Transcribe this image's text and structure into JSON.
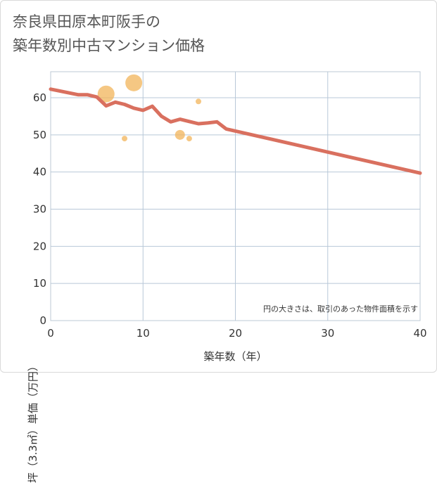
{
  "title_line1": "奈良県田原本町阪手の",
  "title_line2": "築年数別中古マンション価格",
  "chart_data": {
    "type": "scatter",
    "title": "奈良県田原本町阪手の築年数別中古マンション価格",
    "xlabel": "築年数（年）",
    "ylabel": "坪（3.3㎡）単価（万円）",
    "xlim": [
      0,
      40
    ],
    "ylim": [
      0,
      67
    ],
    "x_ticks": [
      "0",
      "10",
      "20",
      "30",
      "40"
    ],
    "y_ticks": [
      "0",
      "10",
      "20",
      "30",
      "40",
      "50",
      "60"
    ],
    "grid": true,
    "note": "円の大きさは、取引のあった物件面積を示す",
    "scatter_points": [
      {
        "x": 6,
        "y": 61,
        "size": 3
      },
      {
        "x": 9,
        "y": 64,
        "size": 3
      },
      {
        "x": 8,
        "y": 49,
        "size": 1
      },
      {
        "x": 14,
        "y": 50,
        "size": 2
      },
      {
        "x": 15,
        "y": 49,
        "size": 1
      },
      {
        "x": 16,
        "y": 59,
        "size": 1
      }
    ],
    "trend_line": {
      "x": [
        0,
        3,
        4,
        5,
        6,
        7,
        8,
        9,
        10,
        11,
        12,
        13,
        14,
        15,
        16,
        17,
        18,
        19,
        40
      ],
      "y": [
        62.3,
        60.8,
        60.8,
        60.2,
        57.8,
        58.8,
        58.2,
        57.2,
        56.6,
        57.7,
        55,
        53.5,
        54.2,
        53.6,
        53,
        53.2,
        53.5,
        51.6,
        39.7
      ]
    },
    "colors": {
      "bubble": "#f2b45a",
      "trend": "#d9705f",
      "grid": "#b8c8d8",
      "plot_border": "#bcc8d4"
    }
  }
}
